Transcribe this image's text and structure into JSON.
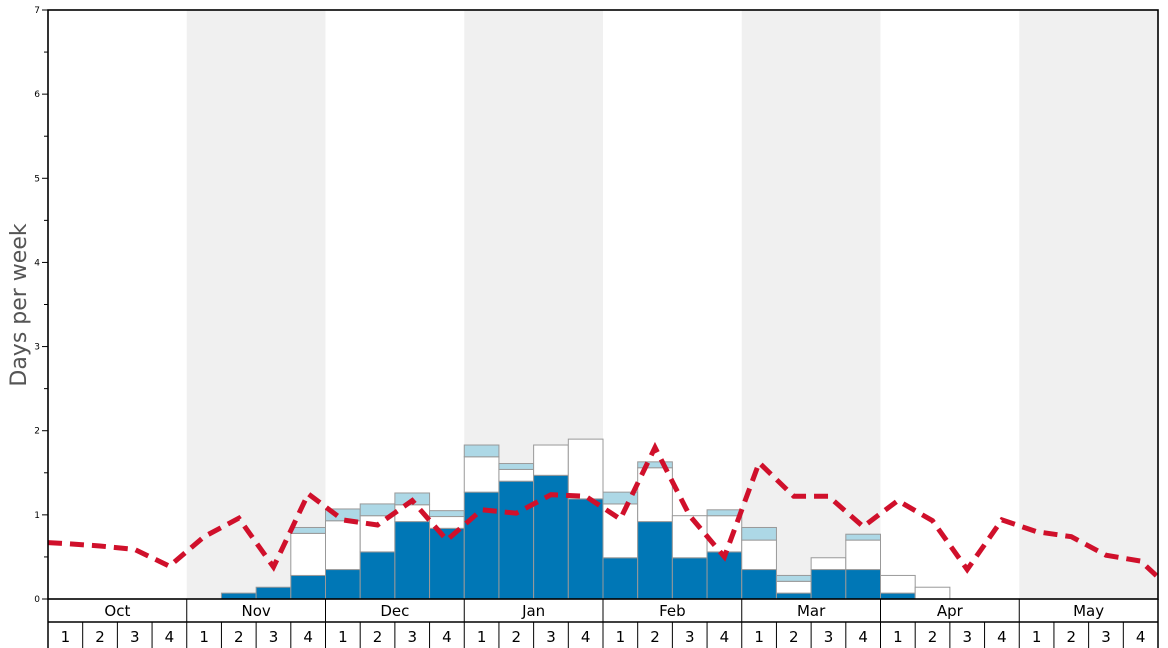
{
  "chart_data": {
    "type": "bar",
    "ylabel": "Days per week",
    "ylim": [
      0,
      7
    ],
    "yticks": [
      0,
      1,
      2,
      3,
      4,
      5,
      6,
      7
    ],
    "months": [
      "Oct",
      "Nov",
      "Dec",
      "Jan",
      "Feb",
      "Mar",
      "Apr",
      "May"
    ],
    "weeks": [
      "1",
      "2",
      "3",
      "4"
    ],
    "shaded_months": [
      "Nov",
      "Jan",
      "Mar",
      "May"
    ],
    "series": [
      {
        "values": [
          0,
          0,
          0,
          0,
          0,
          0.07,
          0.14,
          0.28,
          0.35,
          0.56,
          0.92,
          0.84,
          1.27,
          1.4,
          1.47,
          1.19,
          0.49,
          0.92,
          0.49,
          0.56,
          0.35,
          0.07,
          0.35,
          0.35,
          0.07,
          0,
          0,
          0,
          0,
          0,
          0,
          0
        ],
        "color": "#0077b6"
      },
      {
        "values": [
          0,
          0,
          0,
          0,
          0,
          0,
          0,
          0.5,
          0.58,
          0.43,
          0.2,
          0.14,
          0.42,
          0.14,
          0.36,
          0.71,
          0.64,
          0.64,
          0.5,
          0.43,
          0.35,
          0.14,
          0.14,
          0.35,
          0.21,
          0.14,
          0,
          0,
          0,
          0,
          0,
          0
        ],
        "color": "#ffffff"
      },
      {
        "values": [
          0,
          0,
          0,
          0,
          0,
          0,
          0,
          0.07,
          0.14,
          0.14,
          0.14,
          0.07,
          0.14,
          0.07,
          0,
          0,
          0.14,
          0.07,
          0,
          0.07,
          0.15,
          0.07,
          0,
          0.07,
          0,
          0,
          0,
          0,
          0,
          0,
          0,
          0
        ],
        "color": "#add8e6"
      }
    ],
    "average_line": {
      "color": "#d0102b",
      "values": [
        0.66,
        0.63,
        0.59,
        0.39,
        0.74,
        0.96,
        0.38,
        1.25,
        0.94,
        0.88,
        1.17,
        0.7,
        1.06,
        1.02,
        1.24,
        1.22,
        0.95,
        1.8,
        0.99,
        0.5,
        1.62,
        1.22,
        1.22,
        0.86,
        1.17,
        0.93,
        0.35,
        0.94,
        0.8,
        0.74,
        0.52,
        0.45
      ]
    },
    "extra_line_points": {
      "start": 0.67,
      "end": 0.26
    }
  }
}
